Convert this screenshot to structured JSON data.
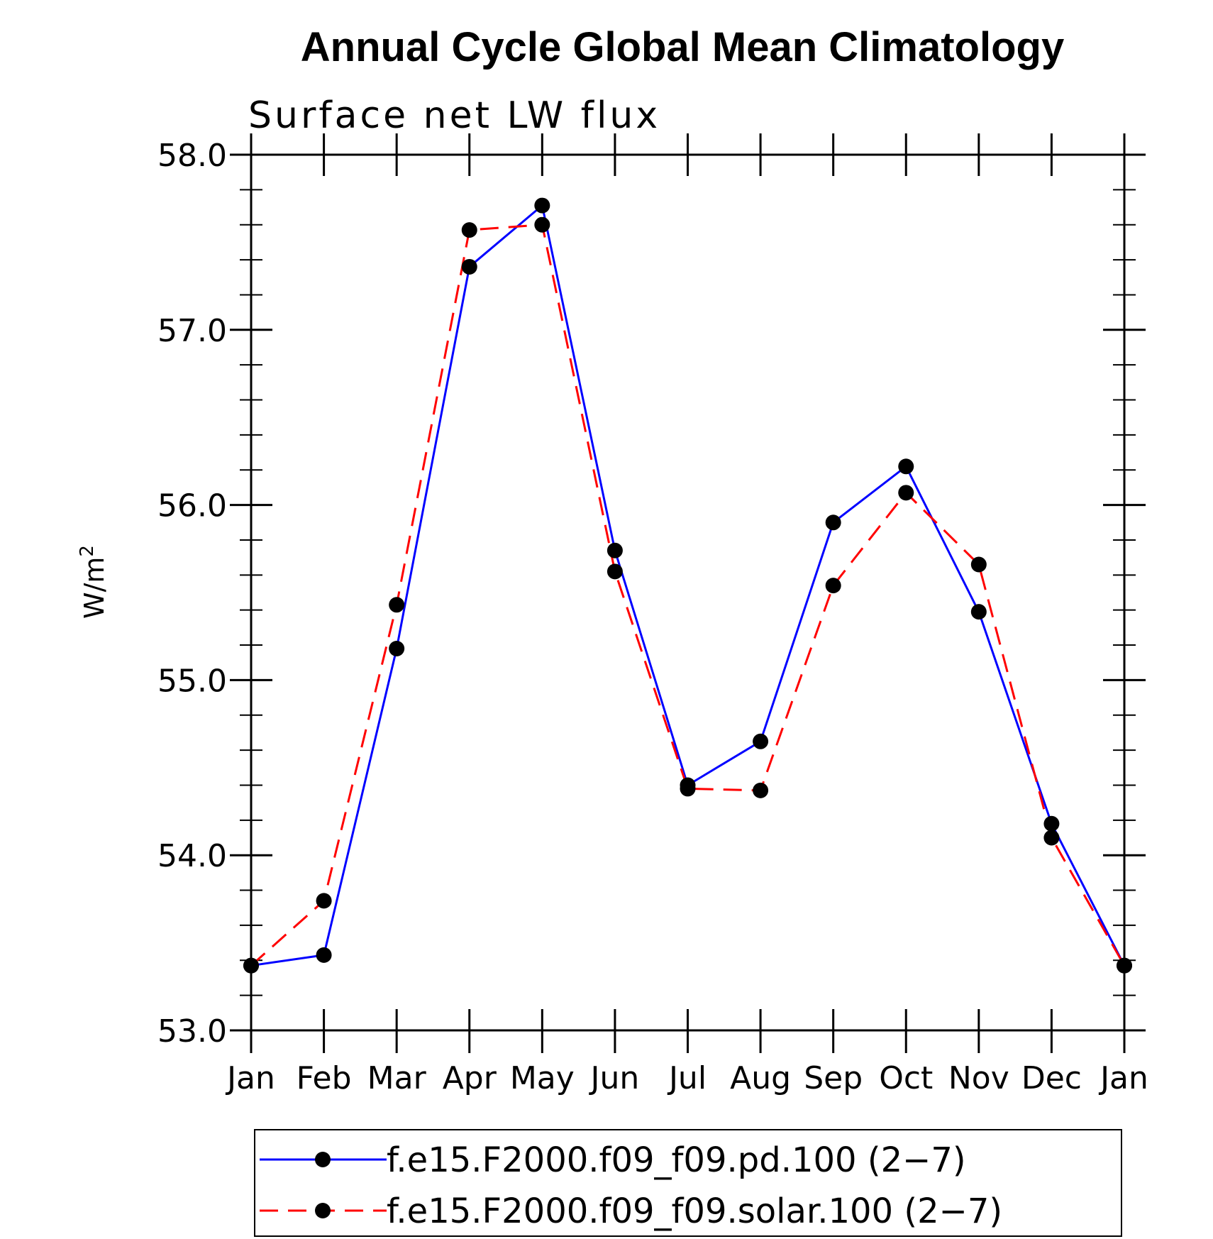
{
  "chart_data": {
    "type": "line",
    "title": "Annual Cycle Global Mean Climatology",
    "subtitle": "Surface net LW flux",
    "xlabel": "",
    "ylabel_base": "W/m",
    "ylabel_sup": "2",
    "categories": [
      "Jan",
      "Feb",
      "Mar",
      "Apr",
      "May",
      "Jun",
      "Jul",
      "Aug",
      "Sep",
      "Oct",
      "Nov",
      "Dec",
      "Jan"
    ],
    "ylim": [
      53.0,
      58.0
    ],
    "yticks": [
      53.0,
      54.0,
      55.0,
      56.0,
      57.0,
      58.0
    ],
    "ytick_labels": [
      "53.0",
      "54.0",
      "55.0",
      "56.0",
      "57.0",
      "58.0"
    ],
    "series": [
      {
        "name": "f.e15.F2000.f09_f09.pd.100 (2−7)",
        "color": "#0000ff",
        "dash": "solid",
        "values": [
          53.37,
          53.43,
          55.18,
          57.36,
          57.71,
          55.74,
          54.4,
          54.65,
          55.9,
          56.22,
          55.39,
          54.18,
          53.37
        ]
      },
      {
        "name": "f.e15.F2000.f09_f09.solar.100 (2−7)",
        "color": "#ff0000",
        "dash": "dashed",
        "values": [
          53.37,
          53.74,
          55.43,
          57.57,
          57.6,
          55.62,
          54.38,
          54.37,
          55.54,
          56.07,
          55.66,
          54.1,
          53.37
        ]
      }
    ],
    "legend_position": "bottom",
    "marker": "filled-circle",
    "marker_color": "#000000"
  }
}
